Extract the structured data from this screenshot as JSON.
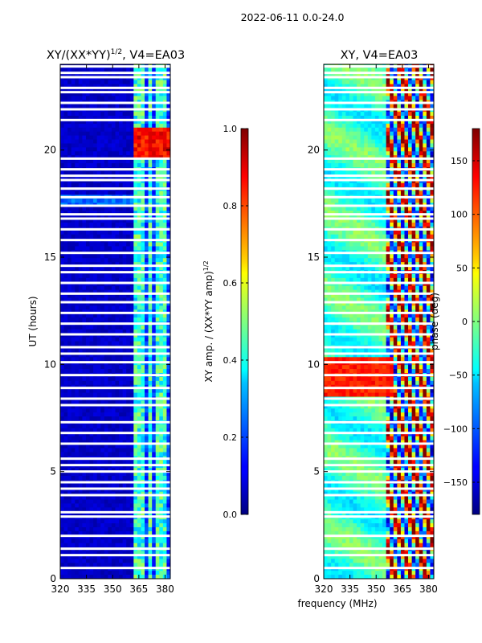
{
  "suptitle": "2022-06-11 0.0-24.0",
  "xlabel_shared": "frequency (MHz)",
  "colors": {
    "white_gap": "#ffffff",
    "axis": "#000000"
  },
  "chart_data": [
    {
      "type": "heatmap",
      "title": "XY/(XX*YY)",
      "title_sup": "1/2",
      "title_tail": ", V4=EA03",
      "xlabel": "",
      "ylabel": "UT (hours)",
      "xlim": [
        320,
        383
      ],
      "ylim": [
        0,
        24
      ],
      "xticks": [
        320,
        335,
        350,
        365,
        380
      ],
      "yticks": [
        0,
        5,
        10,
        15,
        20
      ],
      "colormap": "jet",
      "colorbar": {
        "label": "XY amp. / (XX*YY amp)",
        "label_sup": "1/2",
        "range": [
          0,
          1
        ],
        "ticks": [
          "0.0",
          "0.2",
          "0.4",
          "0.6",
          "0.8",
          "1.0"
        ],
        "tick_values": [
          0,
          0.2,
          0.4,
          0.6,
          0.8,
          1.0
        ]
      },
      "features": [
        {
          "desc": "low background amplitude",
          "freq": [
            320,
            360
          ],
          "value": 0.05
        },
        {
          "desc": "bright channel stripes",
          "freq": [
            361,
            382
          ],
          "value": 0.4
        },
        {
          "desc": "high amplitude burst",
          "freq": [
            361,
            382
          ],
          "ut": [
            19.5,
            21
          ],
          "value": 0.9
        }
      ]
    },
    {
      "type": "heatmap",
      "title": "XY, V4=EA03",
      "xlabel": "frequency (MHz)",
      "ylabel": "",
      "xlim": [
        320,
        383
      ],
      "ylim": [
        0,
        24
      ],
      "xticks": [
        320,
        335,
        350,
        365,
        380
      ],
      "yticks": [
        0,
        5,
        10,
        15,
        20
      ],
      "colormap": "jet",
      "colorbar": {
        "label": "phase (deg)",
        "range": [
          -180,
          180
        ],
        "ticks": [
          "150",
          "100",
          "50",
          "0",
          "−50",
          "−100",
          "−150"
        ],
        "tick_values": [
          150,
          100,
          50,
          0,
          -50,
          -100,
          -150
        ]
      },
      "features": [
        {
          "desc": "large positive phase block",
          "freq": [
            320,
            360
          ],
          "ut": [
            8.5,
            10.3
          ],
          "value": 120
        },
        {
          "desc": "mixed phase wraps",
          "freq": [
            355,
            382
          ],
          "ut": [
            0,
            24
          ],
          "value": 0
        }
      ]
    }
  ]
}
